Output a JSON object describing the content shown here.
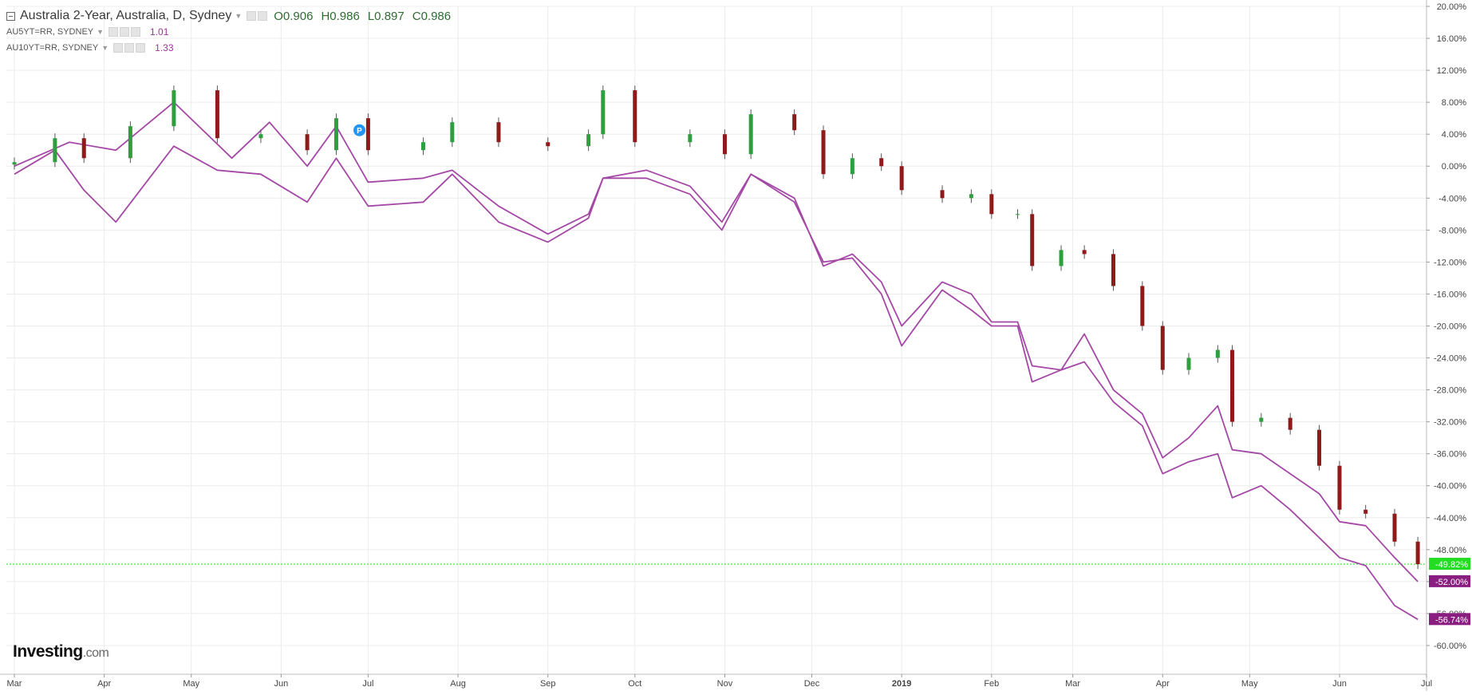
{
  "legend": {
    "main": {
      "title": "Australia 2-Year, Australia, D, Sydney",
      "open": "O0.906",
      "high": "H0.986",
      "low": "L0.897",
      "close": "C0.986"
    },
    "series2": {
      "name": "AU5YT=RR, SYDNEY",
      "value": "1.01"
    },
    "series3": {
      "name": "AU10YT=RR, SYDNEY",
      "value": "1.33"
    }
  },
  "brand": {
    "name": "Investing",
    "suffix": ".com"
  },
  "colors": {
    "up": "#2e9e3e",
    "down": "#8f1a1a",
    "line": "#a448a6",
    "current_marker": "#22dd22",
    "series_label_bg": "#8a1e80",
    "grid": "#ececec"
  },
  "chart_data": {
    "type": "candlestick",
    "y_unit": "%",
    "ylim": [
      -62,
      20
    ],
    "y_ticks": [
      "20.00%",
      "16.00%",
      "12.00%",
      "8.00%",
      "4.00%",
      "0.00%",
      "-4.00%",
      "-8.00%",
      "-12.00%",
      "-16.00%",
      "-20.00%",
      "-24.00%",
      "-28.00%",
      "-32.00%",
      "-36.00%",
      "-40.00%",
      "-44.00%",
      "-48.00%",
      "-52.00%",
      "-56.00%",
      "-60.00%"
    ],
    "x_ticks": [
      {
        "label": "Mar",
        "date": "2018-03-01"
      },
      {
        "label": "Apr",
        "date": "2018-04-01"
      },
      {
        "label": "May",
        "date": "2018-05-01"
      },
      {
        "label": "Jun",
        "date": "2018-06-01"
      },
      {
        "label": "Jul",
        "date": "2018-07-01"
      },
      {
        "label": "Aug",
        "date": "2018-08-01"
      },
      {
        "label": "Sep",
        "date": "2018-09-01"
      },
      {
        "label": "Oct",
        "date": "2018-10-01"
      },
      {
        "label": "Nov",
        "date": "2018-11-01"
      },
      {
        "label": "Dec",
        "date": "2018-12-01"
      },
      {
        "label": "2019",
        "date": "2019-01-01"
      },
      {
        "label": "Feb",
        "date": "2019-02-01"
      },
      {
        "label": "Mar",
        "date": "2019-03-01"
      },
      {
        "label": "Apr",
        "date": "2019-04-01"
      },
      {
        "label": "May",
        "date": "2019-05-01"
      },
      {
        "label": "Jun",
        "date": "2019-06-01"
      },
      {
        "label": "Jul",
        "date": "2019-07-01"
      }
    ],
    "series": [
      {
        "name": "Australia 2-Year, Australia, D, Sydney",
        "type": "candlestick",
        "points": [
          {
            "date": "2018-03-01",
            "value": 0.5
          },
          {
            "date": "2018-03-15",
            "value": 3.5
          },
          {
            "date": "2018-03-25",
            "value": 1.0
          },
          {
            "date": "2018-04-10",
            "value": 5.0
          },
          {
            "date": "2018-04-25",
            "value": 9.5
          },
          {
            "date": "2018-05-10",
            "value": 3.5
          },
          {
            "date": "2018-05-25",
            "value": 4.0
          },
          {
            "date": "2018-06-10",
            "value": 2.0
          },
          {
            "date": "2018-06-20",
            "value": 6.0
          },
          {
            "date": "2018-07-01",
            "value": 2.0
          },
          {
            "date": "2018-07-20",
            "value": 3.0
          },
          {
            "date": "2018-07-30",
            "value": 5.5
          },
          {
            "date": "2018-08-15",
            "value": 3.0
          },
          {
            "date": "2018-09-01",
            "value": 2.5
          },
          {
            "date": "2018-09-15",
            "value": 4.0
          },
          {
            "date": "2018-09-20",
            "value": 9.5
          },
          {
            "date": "2018-10-01",
            "value": 3.0
          },
          {
            "date": "2018-10-20",
            "value": 4.0
          },
          {
            "date": "2018-11-01",
            "value": 1.5
          },
          {
            "date": "2018-11-10",
            "value": 6.5
          },
          {
            "date": "2018-11-25",
            "value": 4.5
          },
          {
            "date": "2018-12-05",
            "value": -1.0
          },
          {
            "date": "2018-12-15",
            "value": 1.0
          },
          {
            "date": "2018-12-25",
            "value": 0.0
          },
          {
            "date": "2019-01-01",
            "value": -3.0
          },
          {
            "date": "2019-01-15",
            "value": -4.0
          },
          {
            "date": "2019-01-25",
            "value": -3.5
          },
          {
            "date": "2019-02-01",
            "value": -6.0
          },
          {
            "date": "2019-02-10",
            "value": -6.0
          },
          {
            "date": "2019-02-15",
            "value": -12.5
          },
          {
            "date": "2019-02-25",
            "value": -10.5
          },
          {
            "date": "2019-03-05",
            "value": -11.0
          },
          {
            "date": "2019-03-15",
            "value": -15.0
          },
          {
            "date": "2019-03-25",
            "value": -20.0
          },
          {
            "date": "2019-04-01",
            "value": -25.5
          },
          {
            "date": "2019-04-10",
            "value": -24.0
          },
          {
            "date": "2019-04-20",
            "value": -23.0
          },
          {
            "date": "2019-04-25",
            "value": -32.0
          },
          {
            "date": "2019-05-05",
            "value": -31.5
          },
          {
            "date": "2019-05-15",
            "value": -33.0
          },
          {
            "date": "2019-05-25",
            "value": -37.5
          },
          {
            "date": "2019-06-01",
            "value": -43.0
          },
          {
            "date": "2019-06-10",
            "value": -43.5
          },
          {
            "date": "2019-06-20",
            "value": -47.0
          },
          {
            "date": "2019-06-28",
            "value": -49.82
          }
        ]
      },
      {
        "name": "AU5YT=RR, SYDNEY",
        "type": "line",
        "points": [
          {
            "date": "2018-03-01",
            "value": 0.0
          },
          {
            "date": "2018-03-20",
            "value": 3.0
          },
          {
            "date": "2018-04-05",
            "value": 2.0
          },
          {
            "date": "2018-04-25",
            "value": 8.0
          },
          {
            "date": "2018-05-15",
            "value": 1.0
          },
          {
            "date": "2018-05-28",
            "value": 5.5
          },
          {
            "date": "2018-06-10",
            "value": 0.0
          },
          {
            "date": "2018-06-20",
            "value": 5.0
          },
          {
            "date": "2018-07-01",
            "value": -2.0
          },
          {
            "date": "2018-07-20",
            "value": -1.5
          },
          {
            "date": "2018-07-30",
            "value": -0.5
          },
          {
            "date": "2018-08-15",
            "value": -5.0
          },
          {
            "date": "2018-09-01",
            "value": -8.5
          },
          {
            "date": "2018-09-15",
            "value": -6.0
          },
          {
            "date": "2018-09-20",
            "value": -1.5
          },
          {
            "date": "2018-10-05",
            "value": -0.5
          },
          {
            "date": "2018-10-20",
            "value": -2.5
          },
          {
            "date": "2018-10-31",
            "value": -7.0
          },
          {
            "date": "2018-11-10",
            "value": -1.0
          },
          {
            "date": "2018-11-25",
            "value": -4.0
          },
          {
            "date": "2018-12-05",
            "value": -12.5
          },
          {
            "date": "2018-12-15",
            "value": -11.0
          },
          {
            "date": "2018-12-25",
            "value": -14.5
          },
          {
            "date": "2019-01-01",
            "value": -20.0
          },
          {
            "date": "2019-01-15",
            "value": -14.5
          },
          {
            "date": "2019-01-25",
            "value": -16.0
          },
          {
            "date": "2019-02-01",
            "value": -19.5
          },
          {
            "date": "2019-02-10",
            "value": -19.5
          },
          {
            "date": "2019-02-15",
            "value": -25.0
          },
          {
            "date": "2019-02-25",
            "value": -25.5
          },
          {
            "date": "2019-03-05",
            "value": -21.0
          },
          {
            "date": "2019-03-15",
            "value": -28.0
          },
          {
            "date": "2019-03-25",
            "value": -31.0
          },
          {
            "date": "2019-04-01",
            "value": -36.5
          },
          {
            "date": "2019-04-10",
            "value": -34.0
          },
          {
            "date": "2019-04-20",
            "value": -30.0
          },
          {
            "date": "2019-04-25",
            "value": -35.5
          },
          {
            "date": "2019-05-05",
            "value": -36.0
          },
          {
            "date": "2019-05-15",
            "value": -38.5
          },
          {
            "date": "2019-05-25",
            "value": -41.0
          },
          {
            "date": "2019-06-01",
            "value": -44.5
          },
          {
            "date": "2019-06-10",
            "value": -45.0
          },
          {
            "date": "2019-06-20",
            "value": -49.0
          },
          {
            "date": "2019-06-28",
            "value": -52.0
          }
        ]
      },
      {
        "name": "AU10YT=RR, SYDNEY",
        "type": "line",
        "points": [
          {
            "date": "2018-03-01",
            "value": -1.0
          },
          {
            "date": "2018-03-15",
            "value": 2.0
          },
          {
            "date": "2018-03-25",
            "value": -3.0
          },
          {
            "date": "2018-04-05",
            "value": -7.0
          },
          {
            "date": "2018-04-25",
            "value": 2.5
          },
          {
            "date": "2018-05-10",
            "value": -0.5
          },
          {
            "date": "2018-05-25",
            "value": -1.0
          },
          {
            "date": "2018-06-10",
            "value": -4.5
          },
          {
            "date": "2018-06-20",
            "value": 1.0
          },
          {
            "date": "2018-07-01",
            "value": -5.0
          },
          {
            "date": "2018-07-20",
            "value": -4.5
          },
          {
            "date": "2018-07-30",
            "value": -1.0
          },
          {
            "date": "2018-08-15",
            "value": -7.0
          },
          {
            "date": "2018-09-01",
            "value": -9.5
          },
          {
            "date": "2018-09-15",
            "value": -6.5
          },
          {
            "date": "2018-09-20",
            "value": -1.5
          },
          {
            "date": "2018-10-05",
            "value": -1.5
          },
          {
            "date": "2018-10-20",
            "value": -3.5
          },
          {
            "date": "2018-10-31",
            "value": -8.0
          },
          {
            "date": "2018-11-10",
            "value": -1.0
          },
          {
            "date": "2018-11-25",
            "value": -4.5
          },
          {
            "date": "2018-12-05",
            "value": -12.0
          },
          {
            "date": "2018-12-15",
            "value": -11.5
          },
          {
            "date": "2018-12-25",
            "value": -16.0
          },
          {
            "date": "2019-01-01",
            "value": -22.5
          },
          {
            "date": "2019-01-15",
            "value": -15.5
          },
          {
            "date": "2019-01-25",
            "value": -18.0
          },
          {
            "date": "2019-02-01",
            "value": -20.0
          },
          {
            "date": "2019-02-10",
            "value": -20.0
          },
          {
            "date": "2019-02-15",
            "value": -27.0
          },
          {
            "date": "2019-02-25",
            "value": -25.5
          },
          {
            "date": "2019-03-05",
            "value": -24.5
          },
          {
            "date": "2019-03-15",
            "value": -29.5
          },
          {
            "date": "2019-03-25",
            "value": -32.5
          },
          {
            "date": "2019-04-01",
            "value": -38.5
          },
          {
            "date": "2019-04-10",
            "value": -37.0
          },
          {
            "date": "2019-04-20",
            "value": -36.0
          },
          {
            "date": "2019-04-25",
            "value": -41.5
          },
          {
            "date": "2019-05-05",
            "value": -40.0
          },
          {
            "date": "2019-05-15",
            "value": -43.0
          },
          {
            "date": "2019-05-25",
            "value": -46.5
          },
          {
            "date": "2019-06-01",
            "value": -49.0
          },
          {
            "date": "2019-06-10",
            "value": -50.0
          },
          {
            "date": "2019-06-20",
            "value": -55.0
          },
          {
            "date": "2019-06-28",
            "value": -56.74
          }
        ]
      }
    ],
    "markers": [
      {
        "type": "current-price-line",
        "value": -49.82,
        "label": "-49.82%"
      },
      {
        "type": "series-label",
        "value": -52.0,
        "label": "-52.00%"
      },
      {
        "type": "series-label",
        "value": -56.74,
        "label": "-56.74%"
      },
      {
        "type": "event-badge",
        "date": "2018-06-28",
        "value": 4.5,
        "label": "P"
      }
    ],
    "grid": true,
    "legend_position": "top-left"
  }
}
